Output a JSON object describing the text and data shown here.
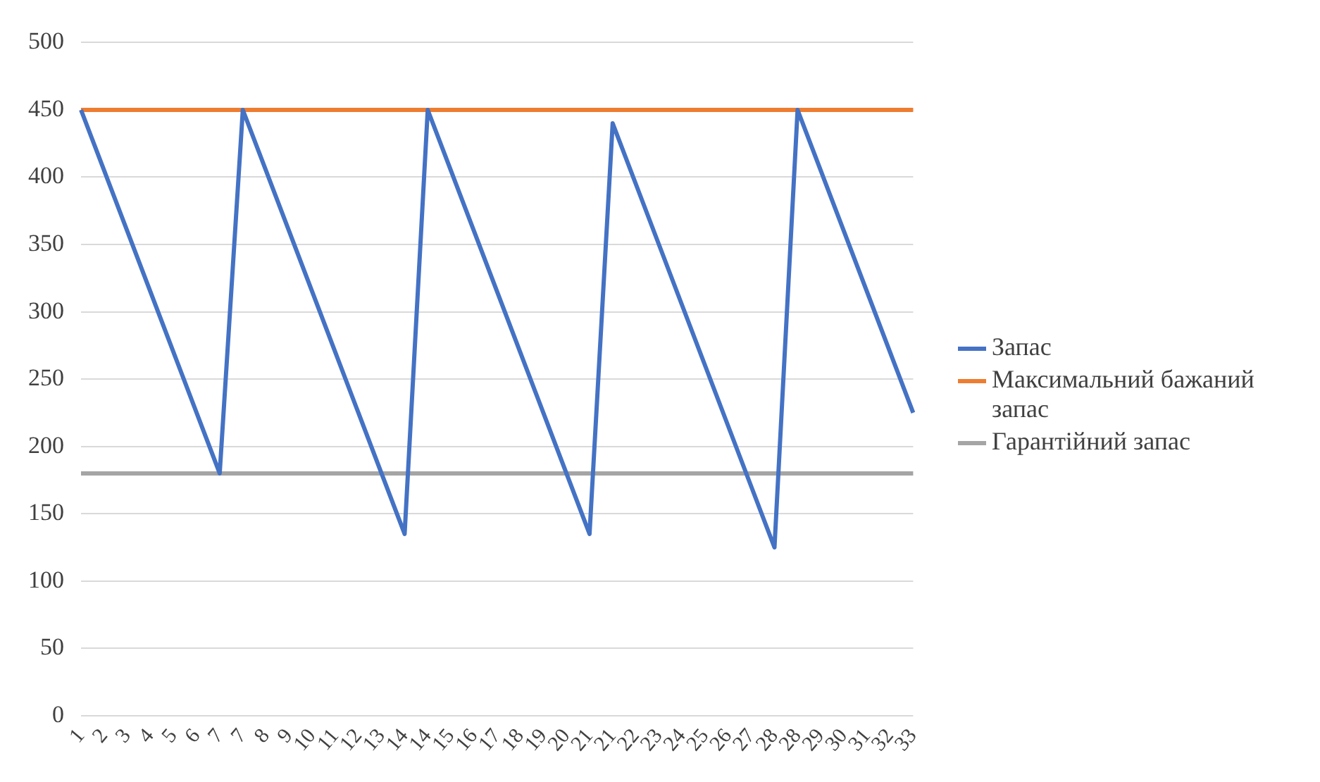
{
  "chart_data": {
    "type": "line",
    "categories": [
      "1",
      "2",
      "3",
      "4",
      "5",
      "6",
      "7",
      "7",
      "8",
      "9",
      "10",
      "11",
      "12",
      "13",
      "14",
      "14",
      "15",
      "16",
      "17",
      "18",
      "19",
      "20",
      "21",
      "21",
      "22",
      "23",
      "24",
      "25",
      "26",
      "27",
      "28",
      "28",
      "29",
      "30",
      "31",
      "32",
      "33"
    ],
    "series": [
      {
        "name": "Запас",
        "color": "#4472c4",
        "values": [
          450,
          405,
          360,
          315,
          270,
          225,
          180,
          450,
          405,
          360,
          315,
          270,
          225,
          180,
          135,
          450,
          405,
          360,
          315,
          270,
          225,
          180,
          135,
          440,
          395,
          350,
          305,
          260,
          215,
          170,
          125,
          450,
          405,
          360,
          315,
          270,
          225
        ]
      },
      {
        "name": "Максимальний бажаний запас",
        "color": "#ed7d31",
        "values": [
          450,
          450,
          450,
          450,
          450,
          450,
          450,
          450,
          450,
          450,
          450,
          450,
          450,
          450,
          450,
          450,
          450,
          450,
          450,
          450,
          450,
          450,
          450,
          450,
          450,
          450,
          450,
          450,
          450,
          450,
          450,
          450,
          450,
          450,
          450,
          450,
          450
        ]
      },
      {
        "name": "Гарантійний запас",
        "color": "#a5a5a5",
        "values": [
          180,
          180,
          180,
          180,
          180,
          180,
          180,
          180,
          180,
          180,
          180,
          180,
          180,
          180,
          180,
          180,
          180,
          180,
          180,
          180,
          180,
          180,
          180,
          180,
          180,
          180,
          180,
          180,
          180,
          180,
          180,
          180,
          180,
          180,
          180,
          180,
          180
        ]
      }
    ],
    "ylim": [
      0,
      500
    ],
    "yticks": [
      0,
      50,
      100,
      150,
      200,
      250,
      300,
      350,
      400,
      450,
      500
    ],
    "grid": "y",
    "legend": "right",
    "marker": "none",
    "line_style": "solid"
  }
}
